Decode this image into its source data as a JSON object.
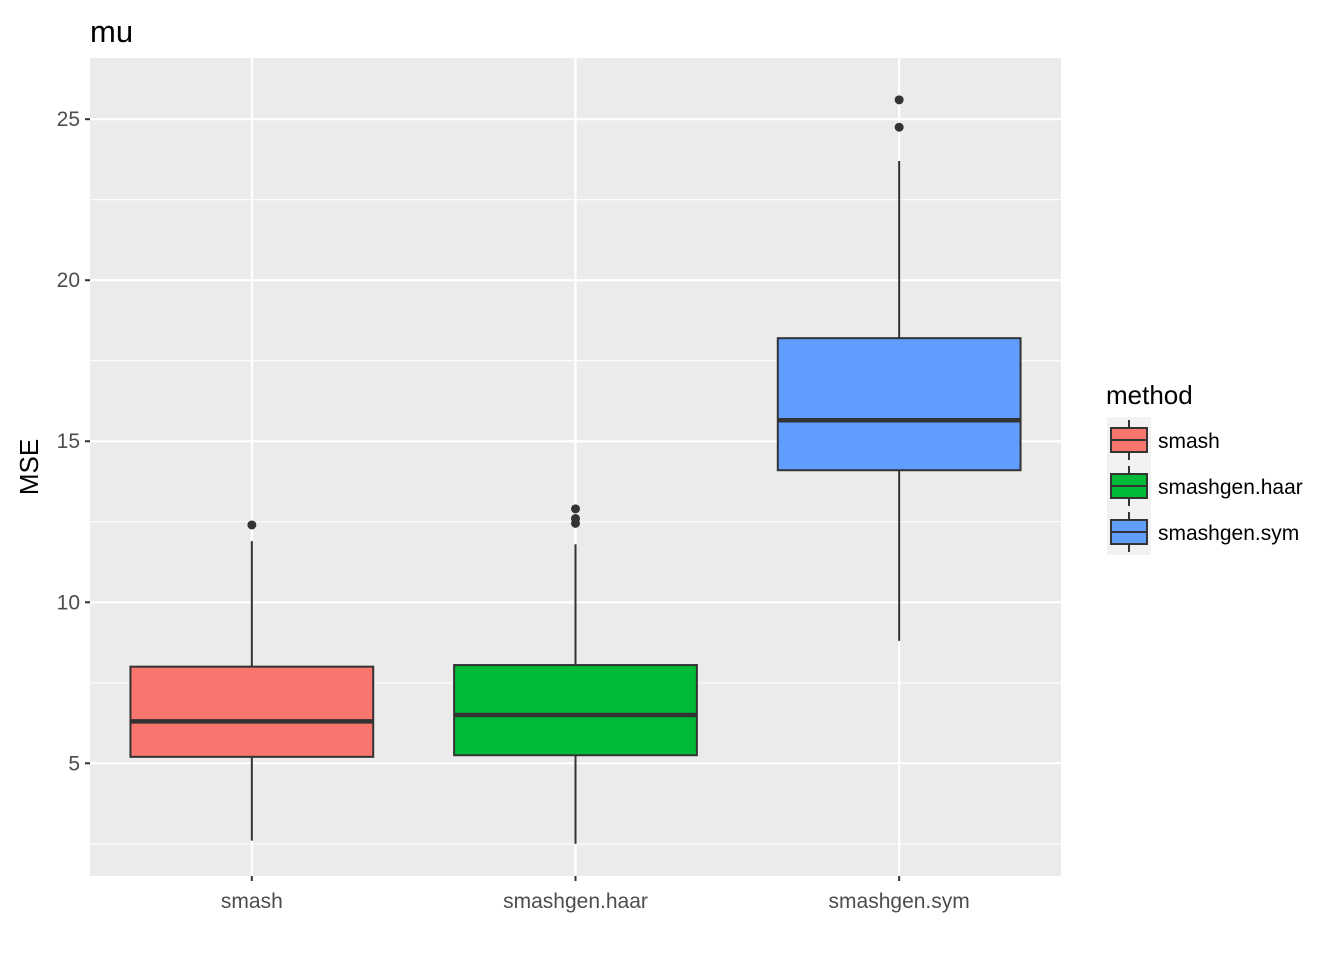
{
  "chart_data": {
    "type": "box",
    "title": "mu",
    "xlabel": "",
    "ylabel": "MSE",
    "ylim": [
      1.5,
      26.9
    ],
    "yticks": [
      5,
      10,
      15,
      20,
      25
    ],
    "grid": true,
    "legend": {
      "title": "method",
      "position": "right",
      "entries": [
        "smash",
        "smashgen.haar",
        "smashgen.sym"
      ]
    },
    "categories": [
      "smash",
      "smashgen.haar",
      "smashgen.sym"
    ],
    "boxes": [
      {
        "name": "smash",
        "color": "#F8766D",
        "whisker_low": 2.6,
        "q1": 5.2,
        "median": 6.3,
        "q3": 8.0,
        "whisker_high": 11.9,
        "outliers": [
          12.4
        ]
      },
      {
        "name": "smashgen.haar",
        "color": "#00BA38",
        "whisker_low": 2.5,
        "q1": 5.25,
        "median": 6.5,
        "q3": 8.05,
        "whisker_high": 11.8,
        "outliers": [
          12.45,
          12.6,
          12.9
        ]
      },
      {
        "name": "smashgen.sym",
        "color": "#619CFF",
        "whisker_low": 8.8,
        "q1": 14.1,
        "median": 15.65,
        "q3": 18.2,
        "whisker_high": 23.7,
        "outliers": [
          24.75,
          25.6
        ]
      }
    ]
  }
}
